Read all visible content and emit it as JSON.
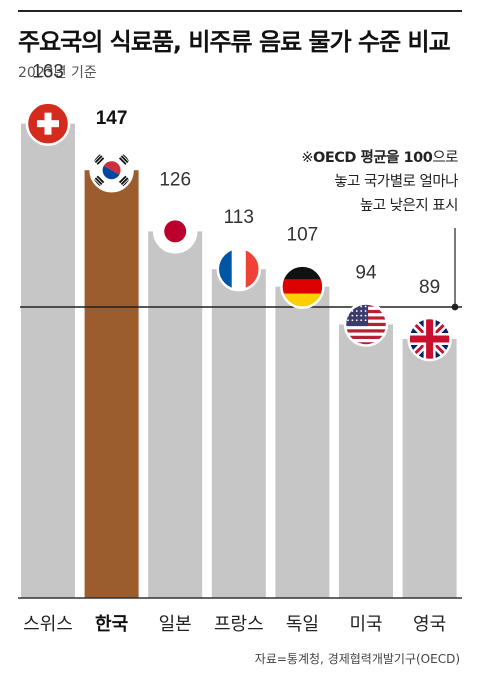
{
  "title": "주요국의 식료품, 비주류 음료 물가 수준 비교",
  "subtitle": "2023년 기준",
  "source": "자료=통계청, 경제협력개발기구(OECD)",
  "colors": {
    "bar": "#c6c6c6",
    "highlight": "#9b5d2e",
    "baseline": "#222222",
    "axis": "#333333"
  },
  "chart_data": {
    "type": "bar",
    "categories": [
      "스위스",
      "한국",
      "일본",
      "프랑스",
      "독일",
      "미국",
      "영국"
    ],
    "values": [
      163,
      147,
      126,
      113,
      107,
      94,
      89
    ],
    "highlight": "한국",
    "reference_line": 100,
    "ylim": [
      0,
      163
    ],
    "annotation": {
      "prefix": "※",
      "bold": "OECD 평균을 100",
      "line1_rest": "으로",
      "line2": "놓고 국가별로 얼마나",
      "line3": "높고 낮은지 표시"
    },
    "flags": [
      "switzerland-flag",
      "south-korea-flag",
      "japan-flag",
      "france-flag",
      "germany-flag",
      "usa-flag",
      "uk-flag"
    ]
  }
}
